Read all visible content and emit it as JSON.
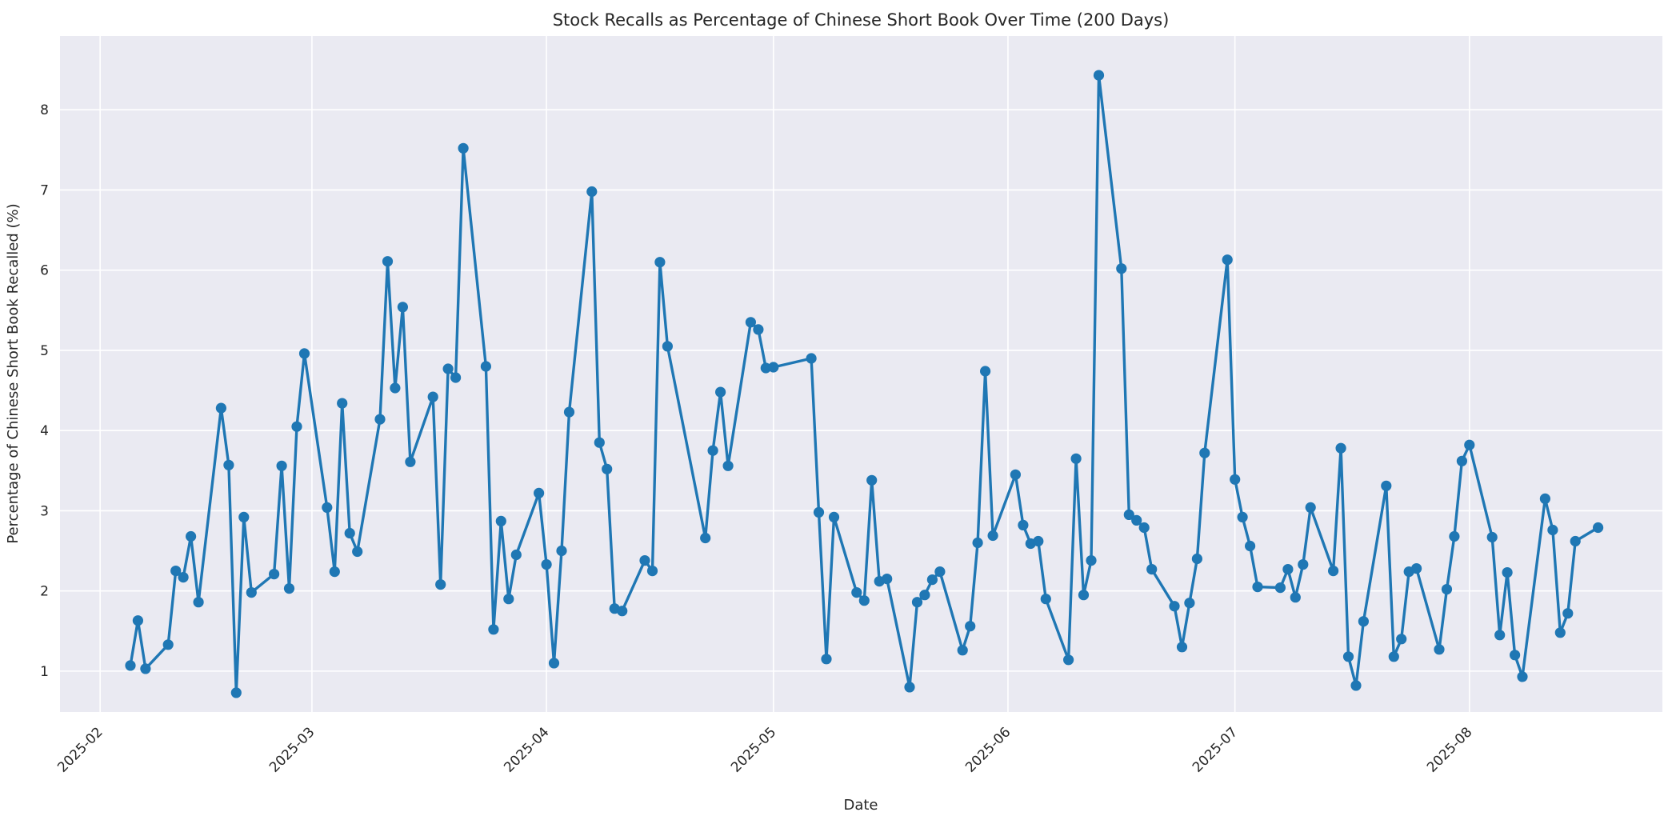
{
  "chart_data": {
    "type": "line",
    "title": "Stock Recalls as Percentage of Chinese Short Book Over Time (200 Days)",
    "xlabel": "Date",
    "ylabel": "Percentage of Chinese Short Book Recalled (%)",
    "legend": null,
    "grid": true,
    "style": {
      "plot_background": "#eaeaf2",
      "grid_color": "#ffffff",
      "line_color": "#1f77b4",
      "marker_color": "#1f77b4",
      "text_color": "#262626",
      "figure_background": "#ffffff"
    },
    "x_ticks": [
      "2025-02",
      "2025-03",
      "2025-04",
      "2025-05",
      "2025-06",
      "2025-07",
      "2025-08"
    ],
    "y_ticks": [
      1,
      2,
      3,
      4,
      5,
      6,
      7,
      8
    ],
    "xlim_days_from_2025_02_01": [
      -5.3,
      206.5
    ],
    "ylim": [
      0.49,
      8.92
    ],
    "series": [
      {
        "name": "recall_percentage",
        "dates": [
          "2025-02-05",
          "2025-02-06",
          "2025-02-07",
          "2025-02-10",
          "2025-02-11",
          "2025-02-12",
          "2025-02-13",
          "2025-02-14",
          "2025-02-17",
          "2025-02-18",
          "2025-02-19",
          "2025-02-20",
          "2025-02-21",
          "2025-02-24",
          "2025-02-25",
          "2025-02-26",
          "2025-02-27",
          "2025-02-28",
          "2025-03-03",
          "2025-03-04",
          "2025-03-05",
          "2025-03-06",
          "2025-03-07",
          "2025-03-10",
          "2025-03-11",
          "2025-03-12",
          "2025-03-13",
          "2025-03-14",
          "2025-03-17",
          "2025-03-18",
          "2025-03-19",
          "2025-03-20",
          "2025-03-21",
          "2025-03-24",
          "2025-03-25",
          "2025-03-26",
          "2025-03-27",
          "2025-03-28",
          "2025-03-31",
          "2025-04-01",
          "2025-04-02",
          "2025-04-03",
          "2025-04-04",
          "2025-04-07",
          "2025-04-08",
          "2025-04-09",
          "2025-04-10",
          "2025-04-11",
          "2025-04-14",
          "2025-04-15",
          "2025-04-16",
          "2025-04-17",
          "2025-04-22",
          "2025-04-23",
          "2025-04-24",
          "2025-04-25",
          "2025-04-28",
          "2025-04-29",
          "2025-04-30",
          "2025-05-01",
          "2025-05-06",
          "2025-05-07",
          "2025-05-08",
          "2025-05-09",
          "2025-05-12",
          "2025-05-13",
          "2025-05-14",
          "2025-05-15",
          "2025-05-16",
          "2025-05-19",
          "2025-05-20",
          "2025-05-21",
          "2025-05-22",
          "2025-05-23",
          "2025-05-26",
          "2025-05-27",
          "2025-05-28",
          "2025-05-29",
          "2025-05-30",
          "2025-06-02",
          "2025-06-03",
          "2025-06-04",
          "2025-06-05",
          "2025-06-06",
          "2025-06-09",
          "2025-06-10",
          "2025-06-11",
          "2025-06-12",
          "2025-06-13",
          "2025-06-16",
          "2025-06-17",
          "2025-06-18",
          "2025-06-19",
          "2025-06-20",
          "2025-06-23",
          "2025-06-24",
          "2025-06-25",
          "2025-06-26",
          "2025-06-27",
          "2025-06-30",
          "2025-07-01",
          "2025-07-02",
          "2025-07-03",
          "2025-07-04",
          "2025-07-07",
          "2025-07-08",
          "2025-07-09",
          "2025-07-10",
          "2025-07-11",
          "2025-07-14",
          "2025-07-15",
          "2025-07-16",
          "2025-07-17",
          "2025-07-18",
          "2025-07-21",
          "2025-07-22",
          "2025-07-23",
          "2025-07-24",
          "2025-07-25",
          "2025-07-28",
          "2025-07-29",
          "2025-07-30",
          "2025-07-31",
          "2025-08-01",
          "2025-08-04",
          "2025-08-05",
          "2025-08-06",
          "2025-08-07",
          "2025-08-08",
          "2025-08-11",
          "2025-08-12",
          "2025-08-13",
          "2025-08-14",
          "2025-08-15",
          "2025-08-18"
        ],
        "values": [
          1.07,
          1.63,
          1.03,
          1.33,
          2.25,
          2.17,
          2.68,
          1.86,
          4.28,
          3.57,
          0.73,
          2.92,
          1.98,
          2.21,
          3.56,
          2.03,
          4.05,
          4.96,
          3.04,
          2.24,
          4.34,
          2.72,
          2.49,
          4.14,
          6.11,
          4.53,
          5.54,
          3.61,
          4.42,
          2.08,
          4.77,
          4.66,
          7.52,
          4.8,
          1.52,
          2.87,
          1.9,
          2.45,
          3.22,
          2.33,
          1.1,
          2.5,
          4.23,
          6.98,
          3.85,
          3.52,
          1.78,
          1.75,
          2.38,
          2.25,
          6.1,
          5.05,
          2.66,
          3.75,
          4.48,
          3.56,
          5.35,
          5.26,
          4.78,
          4.79,
          4.9,
          2.98,
          1.15,
          2.92,
          1.98,
          1.88,
          3.38,
          2.12,
          2.15,
          0.8,
          1.86,
          1.95,
          2.14,
          2.24,
          1.26,
          1.56,
          2.6,
          4.74,
          2.69,
          3.45,
          2.82,
          2.59,
          2.62,
          1.9,
          1.14,
          3.65,
          1.95,
          2.38,
          8.43,
          6.02,
          2.95,
          2.88,
          2.79,
          2.27,
          1.81,
          1.3,
          1.85,
          2.4,
          3.72,
          6.13,
          3.39,
          2.92,
          2.56,
          2.05,
          2.04,
          2.27,
          1.92,
          2.33,
          3.04,
          2.25,
          3.78,
          1.18,
          0.82,
          1.62,
          3.31,
          1.18,
          1.4,
          2.24,
          2.28,
          1.27,
          2.02,
          2.68,
          3.62,
          3.82,
          2.67,
          1.45,
          2.23,
          1.2,
          0.93,
          3.15,
          2.76,
          1.48,
          1.72,
          2.62,
          2.79
        ]
      }
    ]
  }
}
